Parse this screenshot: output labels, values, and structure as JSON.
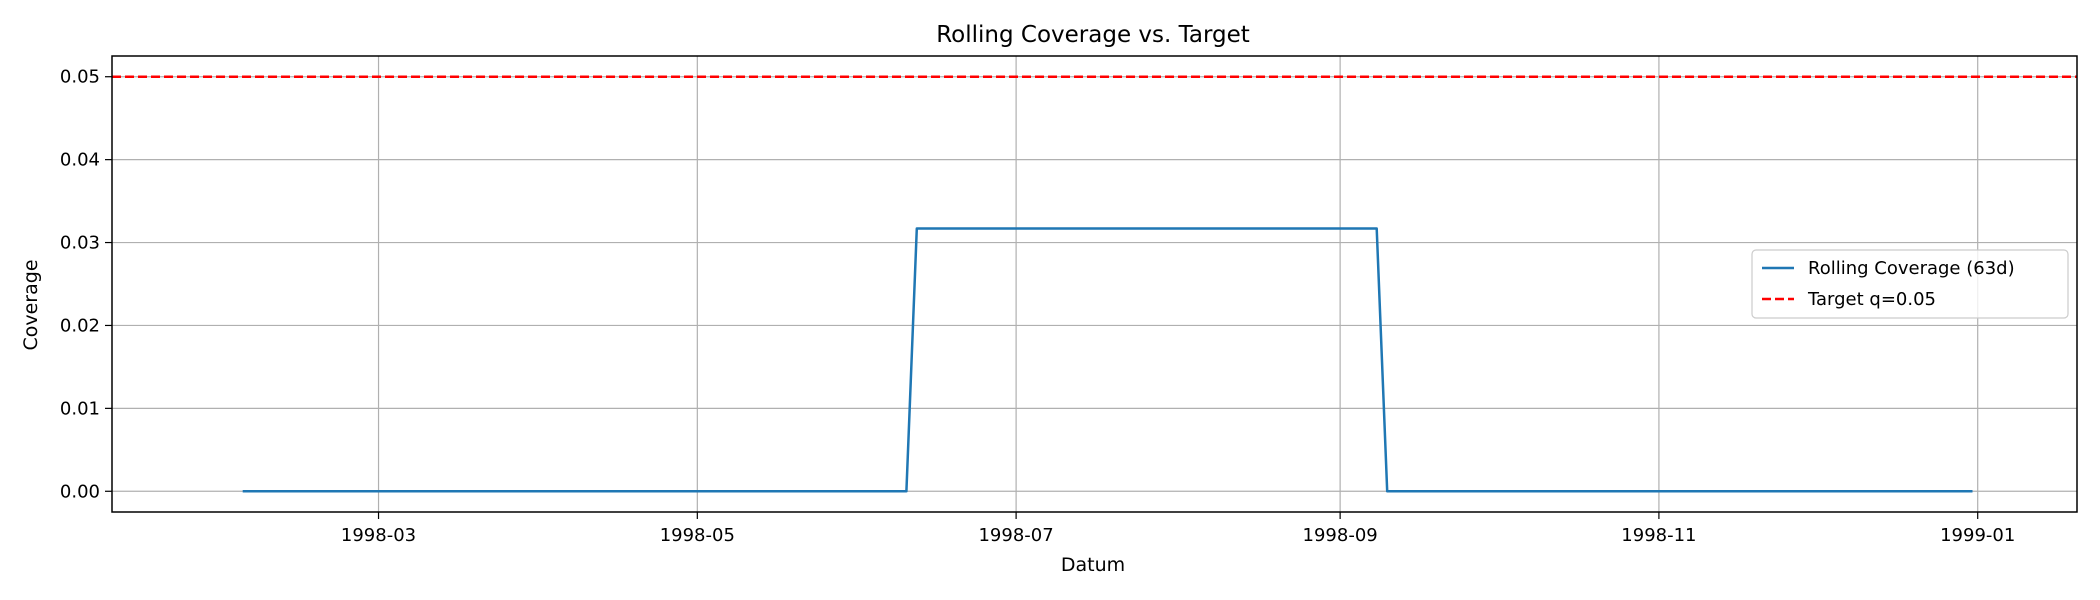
{
  "chart_data": {
    "type": "line",
    "title": "Rolling Coverage vs. Target",
    "xlabel": "Datum",
    "ylabel": "Coverage",
    "xlim": [
      "1998-01-09",
      "1999-01-20"
    ],
    "ylim": [
      -0.0025,
      0.0525
    ],
    "x_ticks": [
      "1998-03-01",
      "1998-05-01",
      "1998-07-01",
      "1998-09-01",
      "1998-11-01",
      "1999-01-01"
    ],
    "x_tick_labels": [
      "1998-03",
      "1998-05",
      "1998-07",
      "1998-09",
      "1998-11",
      "1999-01"
    ],
    "y_ticks": [
      0.0,
      0.01,
      0.02,
      0.03,
      0.04,
      0.05
    ],
    "y_tick_labels": [
      "0.00",
      "0.01",
      "0.02",
      "0.03",
      "0.04",
      "0.05"
    ],
    "grid": true,
    "legend_position": "center-right",
    "series": [
      {
        "name": "Rolling Coverage (63d)",
        "color": "#1f77b4",
        "style": "solid",
        "x": [
          "1998-02-03",
          "1998-06-10",
          "1998-06-12",
          "1998-09-08",
          "1998-09-10",
          "1998-12-31"
        ],
        "y": [
          0.0,
          0.0,
          0.0317,
          0.0317,
          0.0,
          0.0
        ]
      },
      {
        "name": "Target q=0.05",
        "color": "#ff0000",
        "style": "dashed",
        "hline": 0.05
      }
    ]
  }
}
